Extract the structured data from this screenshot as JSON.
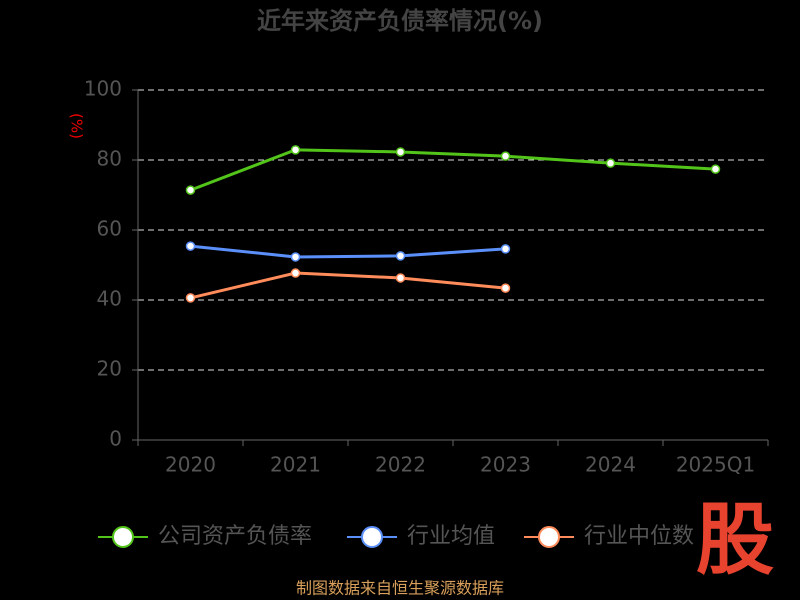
{
  "chart_data": {
    "type": "line",
    "title": "近年来资产负债率情况(%)",
    "y_label": "(%)",
    "categories": [
      "2020",
      "2021",
      "2022",
      "2023",
      "2024",
      "2025Q1"
    ],
    "series": [
      {
        "name": "公司资产负债率",
        "color": "#52c41a",
        "values": [
          71.4,
          82.9,
          82.3,
          81.1,
          79.1,
          77.4
        ]
      },
      {
        "name": "行业均值",
        "color": "#5b8ff9",
        "values": [
          55.4,
          52.3,
          52.6,
          54.6,
          null,
          null
        ]
      },
      {
        "name": "行业中位数",
        "color": "#ff8c5a",
        "values": [
          40.6,
          47.7,
          46.3,
          43.4,
          null,
          null
        ]
      }
    ],
    "ylim": [
      0,
      100
    ],
    "yticks": [
      0,
      20,
      40,
      60,
      80,
      100
    ],
    "grid": true
  },
  "logo": "股",
  "source": "制图数据来自恒生聚源数据库"
}
